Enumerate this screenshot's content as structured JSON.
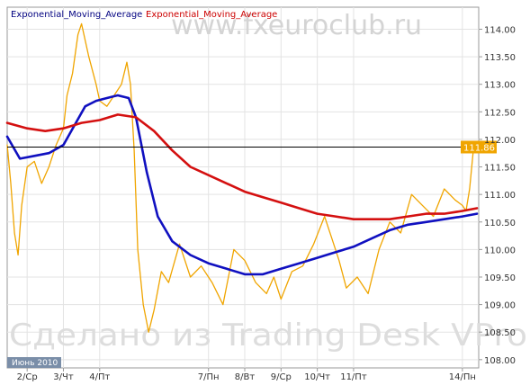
{
  "chart_data": {
    "type": "line",
    "title": "",
    "xlabel": "",
    "ylabel": "",
    "legend": [
      {
        "label": "Exponential_Moving_Average",
        "color": "#000080"
      },
      {
        "label": "Exponential_Moving_Average",
        "color": "#cc0000"
      }
    ],
    "legend_position": "top-left",
    "watermark_top": "www.fxeuroclub.ru",
    "watermark_bottom": "Сделано из Trading Desk VPro",
    "month_label": "Июнь 2010",
    "x_categories": [
      "2/Ср",
      "3/Чт",
      "4/Пт",
      "7/Пн",
      "8/Вт",
      "9/Ср",
      "10/Чт",
      "11/Пт",
      "14/Пн"
    ],
    "y_ticks": [
      "114.00",
      "113.50",
      "113.00",
      "112.50",
      "112.00",
      "111.50",
      "111.00",
      "110.50",
      "110.00",
      "109.50",
      "109.00",
      "108.50",
      "108.00"
    ],
    "ylim": [
      107.85,
      114.4
    ],
    "x_range": [
      1.45,
      14.45
    ],
    "last_price": {
      "value": 111.86,
      "label": "111.86"
    },
    "grid": true,
    "series": [
      {
        "role": "price",
        "color": "#f0a500",
        "x": [
          1.45,
          1.55,
          1.65,
          1.75,
          1.85,
          2.0,
          2.2,
          2.4,
          2.6,
          2.8,
          3.0,
          3.1,
          3.25,
          3.4,
          3.5,
          3.7,
          3.9,
          4.0,
          4.2,
          4.4,
          4.6,
          4.75,
          4.85,
          4.95,
          5.05,
          5.2,
          5.35,
          5.5,
          5.7,
          5.9,
          6.2,
          6.5,
          6.8,
          7.1,
          7.4,
          7.7,
          8.0,
          8.3,
          8.6,
          8.8,
          9.0,
          9.3,
          9.6,
          9.9,
          10.2,
          10.4,
          10.6,
          10.8,
          11.1,
          11.4,
          11.7,
          12.0,
          12.3,
          12.6,
          12.9,
          13.2,
          13.5,
          13.8,
          14.0,
          14.1,
          14.2,
          14.3,
          14.4
        ],
        "y": [
          111.9,
          111.2,
          110.3,
          109.9,
          110.8,
          111.5,
          111.6,
          111.2,
          111.5,
          111.9,
          112.2,
          112.8,
          113.2,
          113.9,
          114.1,
          113.5,
          113.0,
          112.7,
          112.6,
          112.8,
          113.0,
          113.4,
          113.0,
          111.8,
          110.0,
          109.0,
          108.5,
          108.9,
          109.6,
          109.4,
          110.1,
          109.5,
          109.7,
          109.4,
          109.0,
          110.0,
          109.8,
          109.4,
          109.2,
          109.5,
          109.1,
          109.6,
          109.7,
          110.1,
          110.6,
          110.2,
          109.8,
          109.3,
          109.5,
          109.2,
          110.0,
          110.5,
          110.3,
          111.0,
          110.8,
          110.6,
          111.1,
          110.9,
          110.8,
          110.7,
          111.1,
          111.8,
          111.9
        ]
      },
      {
        "name": "Exponential_Moving_Average",
        "role": "ema_fast",
        "color": "#1010c0",
        "x": [
          1.45,
          1.8,
          2.2,
          2.6,
          3.0,
          3.3,
          3.6,
          3.9,
          4.2,
          4.5,
          4.8,
          5.0,
          5.3,
          5.6,
          6.0,
          6.5,
          7.0,
          7.5,
          8.0,
          8.5,
          9.0,
          9.5,
          10.0,
          10.5,
          11.0,
          11.5,
          12.0,
          12.5,
          13.0,
          13.5,
          14.0,
          14.4
        ],
        "y": [
          112.05,
          111.65,
          111.7,
          111.75,
          111.9,
          112.25,
          112.6,
          112.7,
          112.75,
          112.8,
          112.75,
          112.4,
          111.4,
          110.6,
          110.15,
          109.9,
          109.75,
          109.65,
          109.55,
          109.55,
          109.65,
          109.75,
          109.85,
          109.95,
          110.05,
          110.2,
          110.35,
          110.45,
          110.5,
          110.55,
          110.6,
          110.65
        ]
      },
      {
        "name": "Exponential_Moving_Average",
        "role": "ema_slow",
        "color": "#d41010",
        "x": [
          1.45,
          2.0,
          2.5,
          3.0,
          3.5,
          4.0,
          4.5,
          5.0,
          5.5,
          6.0,
          6.5,
          7.0,
          7.5,
          8.0,
          8.5,
          9.0,
          9.5,
          10.0,
          10.5,
          11.0,
          11.5,
          12.0,
          12.5,
          13.0,
          13.5,
          14.0,
          14.4
        ],
        "y": [
          112.3,
          112.2,
          112.15,
          112.2,
          112.3,
          112.35,
          112.45,
          112.4,
          112.15,
          111.8,
          111.5,
          111.35,
          111.2,
          111.05,
          110.95,
          110.85,
          110.75,
          110.65,
          110.6,
          110.55,
          110.55,
          110.55,
          110.6,
          110.65,
          110.65,
          110.7,
          110.75
        ]
      }
    ]
  }
}
